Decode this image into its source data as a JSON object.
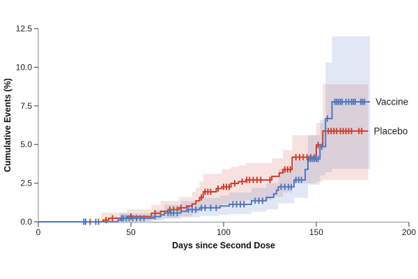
{
  "chart_data": {
    "type": "line",
    "subtype": "kaplan-meier-cumulative-incidence-step",
    "title": "",
    "xlabel": "Days since Second Dose",
    "ylabel": "Cumulative Events (%)",
    "xlim": [
      0,
      200
    ],
    "ylim": [
      0,
      12.5
    ],
    "xticks": [
      0,
      50,
      100,
      150,
      200
    ],
    "xticklabels": [
      "0",
      "50",
      "100",
      "150",
      "200"
    ],
    "yticks": [
      0,
      2.5,
      5,
      7.5,
      10,
      12.5
    ],
    "yticklabels": [
      "0.0",
      "2.5",
      "5.0",
      "7.5",
      "10.0",
      "12.5"
    ],
    "grid": false,
    "legend_position": "right-of-curve-end",
    "background_color": "#ffffff",
    "axis_line_color": "#9aa6b0",
    "tick_color": "#555555",
    "series": [
      {
        "name": "Placebo",
        "label": "Placebo",
        "color": "#cc3e2e",
        "band_fill": "rgba(204,62,46,0.15)",
        "end_day": 178,
        "final_value": 5.87,
        "steps": [
          [
            0,
            0
          ],
          [
            35,
            0.11
          ],
          [
            38,
            0.23
          ],
          [
            48,
            0.34
          ],
          [
            61,
            0.55
          ],
          [
            66,
            0.68
          ],
          [
            70,
            0.79
          ],
          [
            76,
            0.91
          ],
          [
            80,
            1.02
          ],
          [
            83,
            1.15
          ],
          [
            85,
            1.36
          ],
          [
            87,
            1.58
          ],
          [
            89,
            1.94
          ],
          [
            96,
            2.15
          ],
          [
            99,
            2.26
          ],
          [
            104,
            2.49
          ],
          [
            108,
            2.6
          ],
          [
            112,
            2.71
          ],
          [
            126,
            2.94
          ],
          [
            130,
            3.16
          ],
          [
            132,
            3.39
          ],
          [
            137,
            4.18
          ],
          [
            150,
            4.97
          ],
          [
            153.5,
            5.87
          ]
        ],
        "band": [
          [
            34,
            0,
            0.6
          ],
          [
            48,
            0.02,
            0.8
          ],
          [
            61,
            0.15,
            1.1
          ],
          [
            66,
            0.25,
            1.35
          ],
          [
            76,
            0.35,
            1.6
          ],
          [
            83,
            0.5,
            1.95
          ],
          [
            85,
            0.6,
            2.2
          ],
          [
            87,
            0.75,
            2.6
          ],
          [
            89,
            0.95,
            3.1
          ],
          [
            99,
            1.15,
            3.4
          ],
          [
            104,
            1.25,
            3.55
          ],
          [
            108,
            1.3,
            3.65
          ],
          [
            112,
            1.4,
            3.8
          ],
          [
            126,
            1.6,
            4.1
          ],
          [
            132,
            1.9,
            4.65
          ],
          [
            137,
            2.5,
            5.6
          ],
          [
            150,
            2.6,
            6.4
          ],
          [
            153.5,
            2.7,
            8.9
          ]
        ],
        "censor_days": [
          25.5,
          28,
          36.5,
          40,
          50,
          63,
          71,
          73,
          75,
          77,
          88,
          90,
          91.5,
          93,
          97,
          100,
          101.5,
          103,
          106,
          110,
          112.5,
          114,
          116,
          118,
          120,
          125,
          133,
          134.5,
          136,
          139,
          141,
          143,
          145,
          147,
          149,
          151,
          155,
          156.5,
          158,
          159.5,
          161,
          163,
          164.5,
          166,
          167.5,
          169,
          173,
          174.5
        ]
      },
      {
        "name": "Vaccine",
        "label": "Vaccine",
        "color": "#4f77be",
        "band_fill": "rgba(79,119,190,0.17)",
        "end_day": 179,
        "final_value": 7.76,
        "steps": [
          [
            0,
            0
          ],
          [
            43,
            0.11
          ],
          [
            44.5,
            0.23
          ],
          [
            62,
            0.34
          ],
          [
            66,
            0.45
          ],
          [
            68,
            0.57
          ],
          [
            77,
            0.68
          ],
          [
            80,
            0.79
          ],
          [
            87,
            0.9
          ],
          [
            98,
            1.02
          ],
          [
            103,
            1.13
          ],
          [
            115,
            1.36
          ],
          [
            123,
            1.58
          ],
          [
            127,
            1.81
          ],
          [
            128.5,
            2.04
          ],
          [
            129.5,
            2.26
          ],
          [
            138,
            2.71
          ],
          [
            144,
            3.39
          ],
          [
            145.5,
            4.07
          ],
          [
            152,
            4.86
          ],
          [
            155,
            6.68
          ],
          [
            158.5,
            7.76
          ]
        ],
        "band": [
          [
            44,
            0.04,
            0.55
          ],
          [
            62,
            0.08,
            0.75
          ],
          [
            68,
            0.2,
            1.1
          ],
          [
            77,
            0.3,
            1.35
          ],
          [
            87,
            0.38,
            1.55
          ],
          [
            98,
            0.45,
            1.7
          ],
          [
            103,
            0.5,
            1.9
          ],
          [
            115,
            0.65,
            2.2
          ],
          [
            123,
            0.8,
            2.5
          ],
          [
            129.5,
            1.2,
            3.4
          ],
          [
            138,
            1.55,
            4.0
          ],
          [
            145.5,
            2.4,
            5.6
          ],
          [
            152,
            3.0,
            6.6
          ],
          [
            155,
            3.2,
            10.3
          ],
          [
            158.5,
            3.43,
            12.0
          ]
        ],
        "censor_days": [
          24.5,
          25.5,
          31,
          32.5,
          45,
          46,
          47.5,
          49,
          51,
          53,
          55,
          57,
          63,
          70,
          71.5,
          73,
          75,
          81,
          83,
          85,
          88,
          90,
          93,
          96,
          105,
          107,
          109,
          111,
          117,
          119,
          121,
          131,
          133,
          135,
          136.5,
          139,
          140.5,
          142,
          146,
          147,
          148,
          149,
          150,
          151,
          153,
          156,
          160,
          161,
          162,
          163,
          164,
          166,
          167.5,
          169,
          170,
          171,
          174,
          175,
          176
        ]
      }
    ]
  }
}
